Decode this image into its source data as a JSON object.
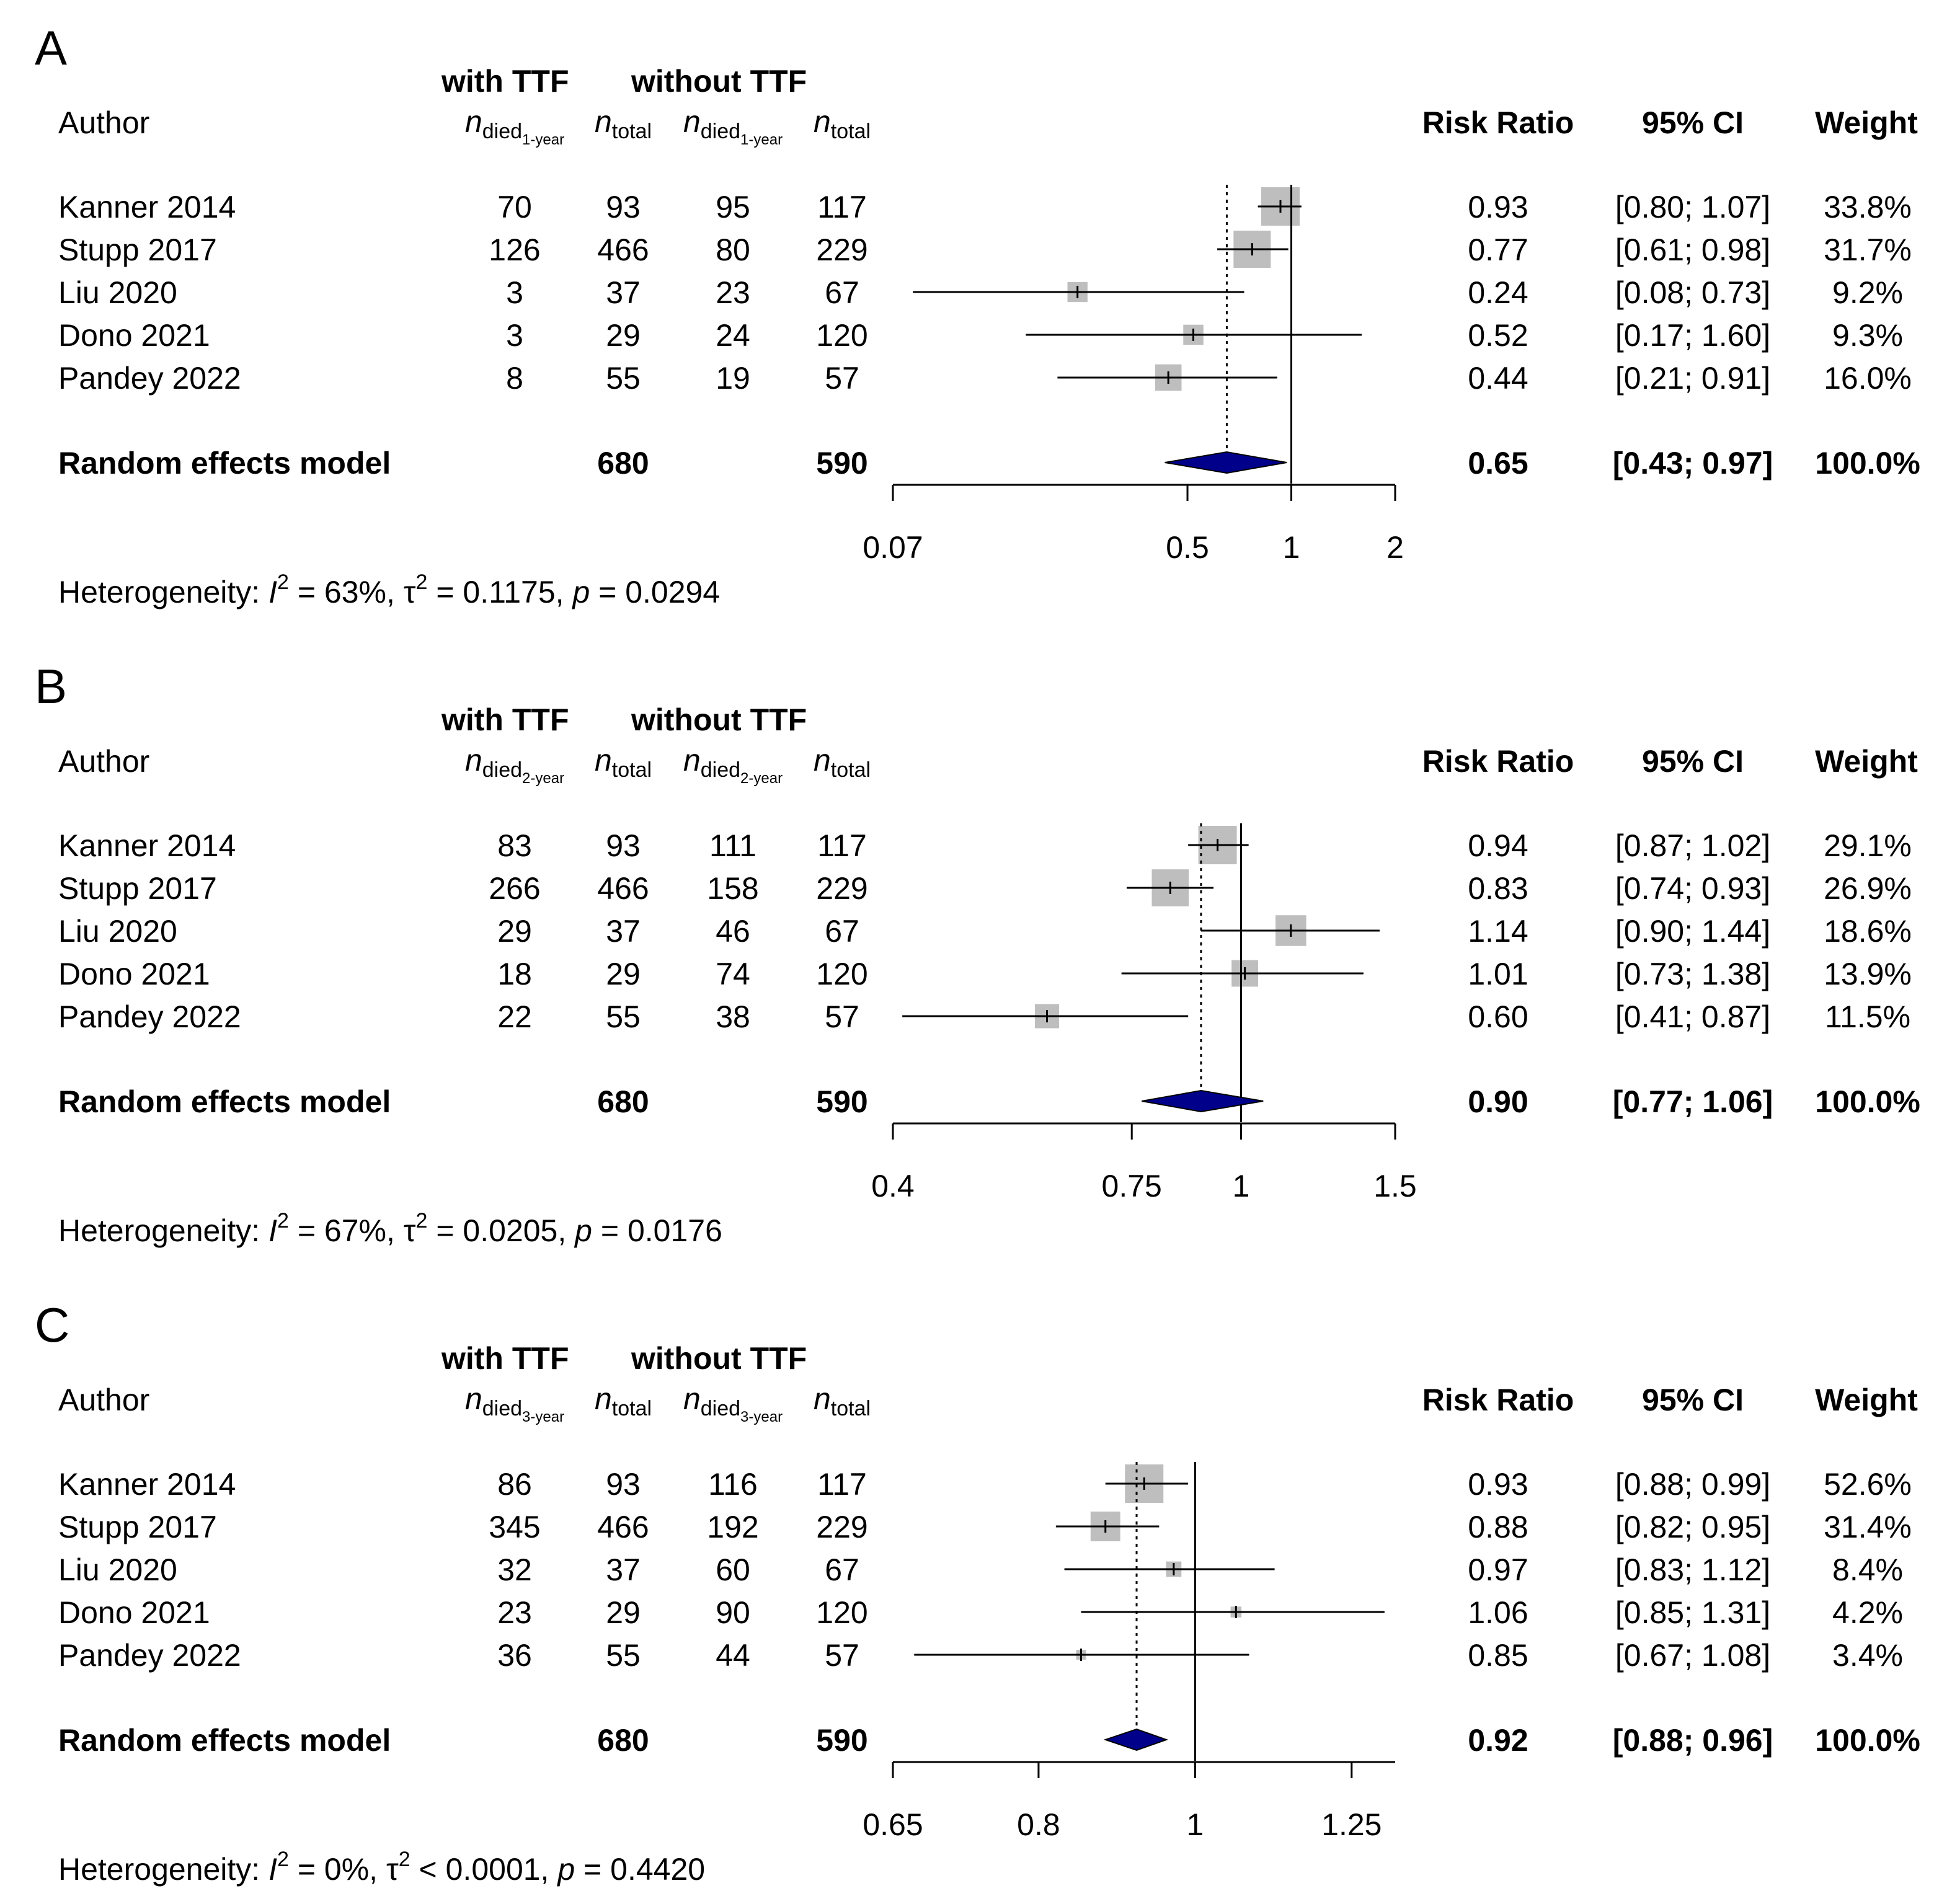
{
  "chart_data": [
    {
      "type": "forest",
      "panel_label": "A",
      "scale": "log",
      "xlim": [
        0.07,
        2
      ],
      "ticks": [
        0.07,
        0.5,
        1,
        2
      ],
      "tick_labels": [
        "0.07",
        "0.5",
        "1",
        "2"
      ],
      "group_headers": {
        "with": "with TTF",
        "without": "without TTF"
      },
      "col_headers": {
        "author": "Author",
        "n_sym": "n",
        "died_sub": "died",
        "time_sub": "1-year",
        "total_sub": "total",
        "rr": "Risk Ratio",
        "ci": "95% CI",
        "weight": "Weight"
      },
      "studies": [
        {
          "author": "Kanner 2014",
          "e1": "70",
          "n1": "93",
          "e2": "95",
          "n2": "117",
          "rr": 0.93,
          "lo": 0.8,
          "hi": 1.07,
          "rr_text": "0.93",
          "ci_text": "[0.80; 1.07]",
          "weight_text": "33.8%",
          "weight": 33.8
        },
        {
          "author": "Stupp 2017",
          "e1": "126",
          "n1": "466",
          "e2": "80",
          "n2": "229",
          "rr": 0.77,
          "lo": 0.61,
          "hi": 0.98,
          "rr_text": "0.77",
          "ci_text": "[0.61; 0.98]",
          "weight_text": "31.7%",
          "weight": 31.7
        },
        {
          "author": "Liu 2020",
          "e1": "3",
          "n1": "37",
          "e2": "23",
          "n2": "67",
          "rr": 0.24,
          "lo": 0.08,
          "hi": 0.73,
          "rr_text": "0.24",
          "ci_text": "[0.08; 0.73]",
          "weight_text": "9.2%",
          "weight": 9.2
        },
        {
          "author": "Dono 2021",
          "e1": "3",
          "n1": "29",
          "e2": "24",
          "n2": "120",
          "rr": 0.52,
          "lo": 0.17,
          "hi": 1.6,
          "rr_text": "0.52",
          "ci_text": "[0.17; 1.60]",
          "weight_text": "9.3%",
          "weight": 9.3
        },
        {
          "author": "Pandey 2022",
          "e1": "8",
          "n1": "55",
          "e2": "19",
          "n2": "57",
          "rr": 0.44,
          "lo": 0.21,
          "hi": 0.91,
          "rr_text": "0.44",
          "ci_text": "[0.21; 0.91]",
          "weight_text": "16.0%",
          "weight": 16.0
        }
      ],
      "pooled": {
        "label": "Random effects model",
        "n1": "680",
        "n2": "590",
        "rr": 0.65,
        "lo": 0.43,
        "hi": 0.97,
        "rr_text": "0.65",
        "ci_text": "[0.43; 0.97]",
        "weight_text": "100.0%"
      },
      "heterogeneity": {
        "prefix": "Heterogeneity: ",
        "i_sym": "I",
        "sup": "2",
        "i_val": " = 63%, ",
        "tau_sym": "τ",
        "tau_rel": " = 0.1175, ",
        "p_sym": "p",
        "p_val": " = 0.0294"
      }
    },
    {
      "type": "forest",
      "panel_label": "B",
      "scale": "log",
      "xlim": [
        0.4,
        1.5
      ],
      "ticks": [
        0.4,
        0.75,
        1,
        1.5
      ],
      "tick_labels": [
        "0.4",
        "0.75",
        "1",
        "1.5"
      ],
      "group_headers": {
        "with": "with TTF",
        "without": "without TTF"
      },
      "col_headers": {
        "author": "Author",
        "n_sym": "n",
        "died_sub": "died",
        "time_sub": "2-year",
        "total_sub": "total",
        "rr": "Risk Ratio",
        "ci": "95% CI",
        "weight": "Weight"
      },
      "studies": [
        {
          "author": "Kanner 2014",
          "e1": "83",
          "n1": "93",
          "e2": "111",
          "n2": "117",
          "rr": 0.94,
          "lo": 0.87,
          "hi": 1.02,
          "rr_text": "0.94",
          "ci_text": "[0.87; 1.02]",
          "weight_text": "29.1%",
          "weight": 29.1
        },
        {
          "author": "Stupp 2017",
          "e1": "266",
          "n1": "466",
          "e2": "158",
          "n2": "229",
          "rr": 0.83,
          "lo": 0.74,
          "hi": 0.93,
          "rr_text": "0.83",
          "ci_text": "[0.74; 0.93]",
          "weight_text": "26.9%",
          "weight": 26.9
        },
        {
          "author": "Liu 2020",
          "e1": "29",
          "n1": "37",
          "e2": "46",
          "n2": "67",
          "rr": 1.14,
          "lo": 0.9,
          "hi": 1.44,
          "rr_text": "1.14",
          "ci_text": "[0.90; 1.44]",
          "weight_text": "18.6%",
          "weight": 18.6
        },
        {
          "author": "Dono 2021",
          "e1": "18",
          "n1": "29",
          "e2": "74",
          "n2": "120",
          "rr": 1.01,
          "lo": 0.73,
          "hi": 1.38,
          "rr_text": "1.01",
          "ci_text": "[0.73; 1.38]",
          "weight_text": "13.9%",
          "weight": 13.9
        },
        {
          "author": "Pandey 2022",
          "e1": "22",
          "n1": "55",
          "e2": "38",
          "n2": "57",
          "rr": 0.6,
          "lo": 0.41,
          "hi": 0.87,
          "rr_text": "0.60",
          "ci_text": "[0.41; 0.87]",
          "weight_text": "11.5%",
          "weight": 11.5
        }
      ],
      "pooled": {
        "label": "Random effects model",
        "n1": "680",
        "n2": "590",
        "rr": 0.9,
        "lo": 0.77,
        "hi": 1.06,
        "rr_text": "0.90",
        "ci_text": "[0.77; 1.06]",
        "weight_text": "100.0%"
      },
      "heterogeneity": {
        "prefix": "Heterogeneity: ",
        "i_sym": "I",
        "sup": "2",
        "i_val": " = 67%, ",
        "tau_sym": "τ",
        "tau_rel": " = 0.0205, ",
        "p_sym": "p",
        "p_val": " = 0.0176"
      }
    },
    {
      "type": "forest",
      "panel_label": "C",
      "scale": "log",
      "xlim": [
        0.65,
        1.33
      ],
      "ticks": [
        0.65,
        0.8,
        1,
        1.25
      ],
      "tick_labels": [
        "0.65",
        "0.8",
        "1",
        "1.25"
      ],
      "group_headers": {
        "with": "with TTF",
        "without": "without TTF"
      },
      "col_headers": {
        "author": "Author",
        "n_sym": "n",
        "died_sub": "died",
        "time_sub": "3-year",
        "total_sub": "total",
        "rr": "Risk Ratio",
        "ci": "95% CI",
        "weight": "Weight"
      },
      "studies": [
        {
          "author": "Kanner 2014",
          "e1": "86",
          "n1": "93",
          "e2": "116",
          "n2": "117",
          "rr": 0.93,
          "lo": 0.88,
          "hi": 0.99,
          "rr_text": "0.93",
          "ci_text": "[0.88; 0.99]",
          "weight_text": "52.6%",
          "weight": 52.6
        },
        {
          "author": "Stupp 2017",
          "e1": "345",
          "n1": "466",
          "e2": "192",
          "n2": "229",
          "rr": 0.88,
          "lo": 0.82,
          "hi": 0.95,
          "rr_text": "0.88",
          "ci_text": "[0.82; 0.95]",
          "weight_text": "31.4%",
          "weight": 31.4
        },
        {
          "author": "Liu 2020",
          "e1": "32",
          "n1": "37",
          "e2": "60",
          "n2": "67",
          "rr": 0.97,
          "lo": 0.83,
          "hi": 1.12,
          "rr_text": "0.97",
          "ci_text": "[0.83; 1.12]",
          "weight_text": "8.4%",
          "weight": 8.4
        },
        {
          "author": "Dono 2021",
          "e1": "23",
          "n1": "29",
          "e2": "90",
          "n2": "120",
          "rr": 1.06,
          "lo": 0.85,
          "hi": 1.31,
          "rr_text": "1.06",
          "ci_text": "[0.85; 1.31]",
          "weight_text": "4.2%",
          "weight": 4.2
        },
        {
          "author": "Pandey 2022",
          "e1": "36",
          "n1": "55",
          "e2": "44",
          "n2": "57",
          "rr": 0.85,
          "lo": 0.67,
          "hi": 1.08,
          "rr_text": "0.85",
          "ci_text": "[0.67; 1.08]",
          "weight_text": "3.4%",
          "weight": 3.4
        }
      ],
      "pooled": {
        "label": "Random effects model",
        "n1": "680",
        "n2": "590",
        "rr": 0.92,
        "lo": 0.88,
        "hi": 0.96,
        "rr_text": "0.92",
        "ci_text": "[0.88; 0.96]",
        "weight_text": "100.0%"
      },
      "heterogeneity": {
        "prefix": "Heterogeneity: ",
        "i_sym": "I",
        "sup": "2",
        "i_val": " = 0%, ",
        "tau_sym": "τ",
        "tau_rel": " < 0.0001, ",
        "p_sym": "p",
        "p_val": " = 0.4420"
      }
    }
  ],
  "colors": {
    "square": "#bebebe",
    "diamond": "#00008b",
    "line": "#000000"
  }
}
